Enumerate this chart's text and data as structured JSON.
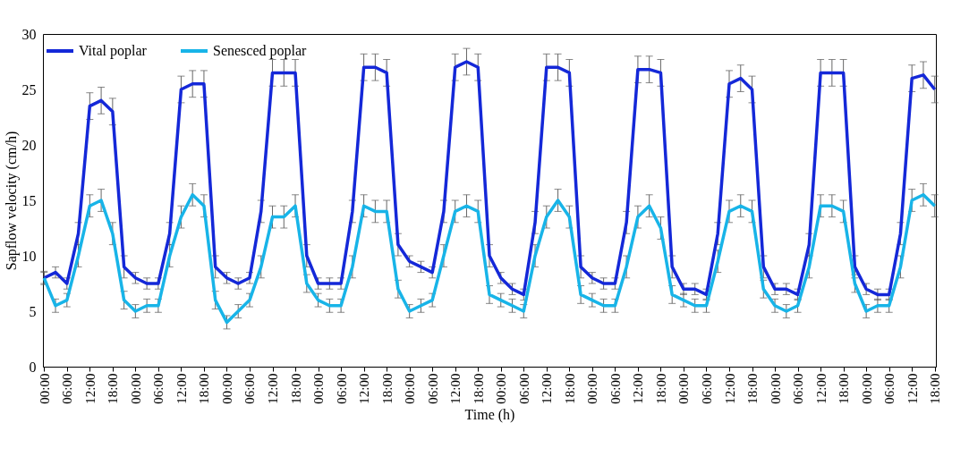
{
  "chart_data": {
    "type": "line",
    "xlabel": "Time (h)",
    "ylabel": "Sapflow velocity (cm/h)",
    "ylim": [
      0,
      30
    ],
    "yticks": [
      0,
      5,
      10,
      15,
      20,
      25,
      30
    ],
    "categories": [
      "00:00",
      null,
      "06:00",
      null,
      "12:00",
      null,
      "18:00",
      null,
      "00:00",
      null,
      "06:00",
      null,
      "12:00",
      null,
      "18:00",
      null,
      "00:00",
      null,
      "06:00",
      null,
      "12:00",
      null,
      "18:00",
      null,
      "00:00",
      null,
      "06:00",
      null,
      "12:00",
      null,
      "18:00",
      null,
      "00:00",
      null,
      "06:00",
      null,
      "12:00",
      null,
      "18:00",
      null,
      "00:00",
      null,
      "06:00",
      null,
      "12:00",
      null,
      "18:00",
      null,
      "00:00",
      null,
      "06:00",
      null,
      "12:00",
      null,
      "18:00",
      null,
      "00:00",
      null,
      "06:00",
      null,
      "12:00",
      null,
      "18:00",
      null,
      "00:00",
      null,
      "06:00",
      null,
      "12:00",
      null,
      "18:00",
      null,
      "00:00",
      null,
      "06:00",
      null,
      "12:00",
      null,
      "18:00"
    ],
    "grid": false,
    "legend": "top left",
    "line_style": "solid",
    "series": [
      {
        "name": "Vital poplar",
        "color": "#1428d8",
        "values": [
          8,
          8.5,
          7.5,
          12,
          23.5,
          24,
          23,
          9,
          8,
          7.5,
          7.5,
          12,
          25,
          25.5,
          25.5,
          9,
          8,
          7.5,
          8,
          14,
          26.5,
          26.5,
          26.5,
          10,
          7.5,
          7.5,
          7.5,
          14,
          27,
          27,
          26.5,
          11,
          9.5,
          9,
          8.5,
          14,
          27,
          27.5,
          27,
          10,
          8,
          7,
          6.5,
          13,
          27,
          27,
          26.5,
          9,
          8,
          7.5,
          7.5,
          13,
          26.8,
          26.8,
          26.5,
          9,
          7,
          7,
          6.5,
          12,
          25.5,
          26,
          25,
          9,
          7,
          7,
          6.5,
          11,
          26.5,
          26.5,
          26.5,
          9,
          7,
          6.5,
          6.5,
          12,
          26,
          26.3,
          25
        ],
        "errors": [
          0.5,
          0.5,
          0.5,
          1,
          1.2,
          1.2,
          1.2,
          1,
          0.5,
          0.5,
          0.5,
          1,
          1.2,
          1.2,
          1.2,
          1,
          0.5,
          0.5,
          0.5,
          1,
          1.2,
          1.2,
          1.2,
          1,
          0.5,
          0.5,
          0.5,
          1,
          1.2,
          1.2,
          1.2,
          1,
          0.5,
          0.5,
          0.5,
          1,
          1.2,
          1.2,
          1.2,
          1,
          0.5,
          0.5,
          0.5,
          1,
          1.2,
          1.2,
          1.2,
          1,
          0.5,
          0.5,
          0.5,
          1,
          1.2,
          1.2,
          1.2,
          1,
          0.5,
          0.5,
          0.5,
          1,
          1.2,
          1.2,
          1.2,
          1,
          0.5,
          0.5,
          0.5,
          1,
          1.2,
          1.2,
          1.2,
          1,
          0.5,
          0.5,
          0.5,
          1,
          1.2,
          1.2,
          1.2
        ]
      },
      {
        "name": "Senesced poplar",
        "color": "#18b4e8",
        "values": [
          8,
          5.5,
          6,
          10,
          14.5,
          15,
          12,
          6,
          5,
          5.5,
          5.5,
          10,
          13.5,
          15.5,
          14.5,
          6,
          4,
          5,
          6,
          9,
          13.5,
          13.5,
          14.5,
          7.5,
          6,
          5.5,
          5.5,
          9,
          14.5,
          14,
          14,
          7,
          5,
          5.5,
          6,
          10,
          14,
          14.5,
          14,
          6.5,
          6,
          5.5,
          5,
          10,
          13.5,
          15,
          13.5,
          6.5,
          6,
          5.5,
          5.5,
          9,
          13.5,
          14.5,
          12.5,
          6.5,
          6,
          5.5,
          5.5,
          9.5,
          14,
          14.5,
          14,
          7,
          5.5,
          5,
          5.5,
          9,
          14.5,
          14.5,
          14,
          7.5,
          5,
          5.5,
          5.5,
          9,
          15,
          15.5,
          14.5
        ],
        "errors": [
          0.6,
          0.6,
          0.6,
          1,
          1,
          1,
          1,
          0.8,
          0.6,
          0.6,
          0.6,
          1,
          1,
          1,
          1,
          0.8,
          0.6,
          0.6,
          0.6,
          1,
          1,
          1,
          1,
          0.8,
          0.6,
          0.6,
          0.6,
          1,
          1,
          1,
          1,
          0.8,
          0.6,
          0.6,
          0.6,
          1,
          1,
          1,
          1,
          0.8,
          0.6,
          0.6,
          0.6,
          1,
          1,
          1,
          1,
          0.8,
          0.6,
          0.6,
          0.6,
          1,
          1,
          1,
          1,
          0.8,
          0.6,
          0.6,
          0.6,
          1,
          1,
          1,
          1,
          0.8,
          0.6,
          0.6,
          0.6,
          1,
          1,
          1,
          1,
          0.8,
          0.6,
          0.6,
          0.6,
          1,
          1,
          1,
          1
        ]
      }
    ]
  }
}
